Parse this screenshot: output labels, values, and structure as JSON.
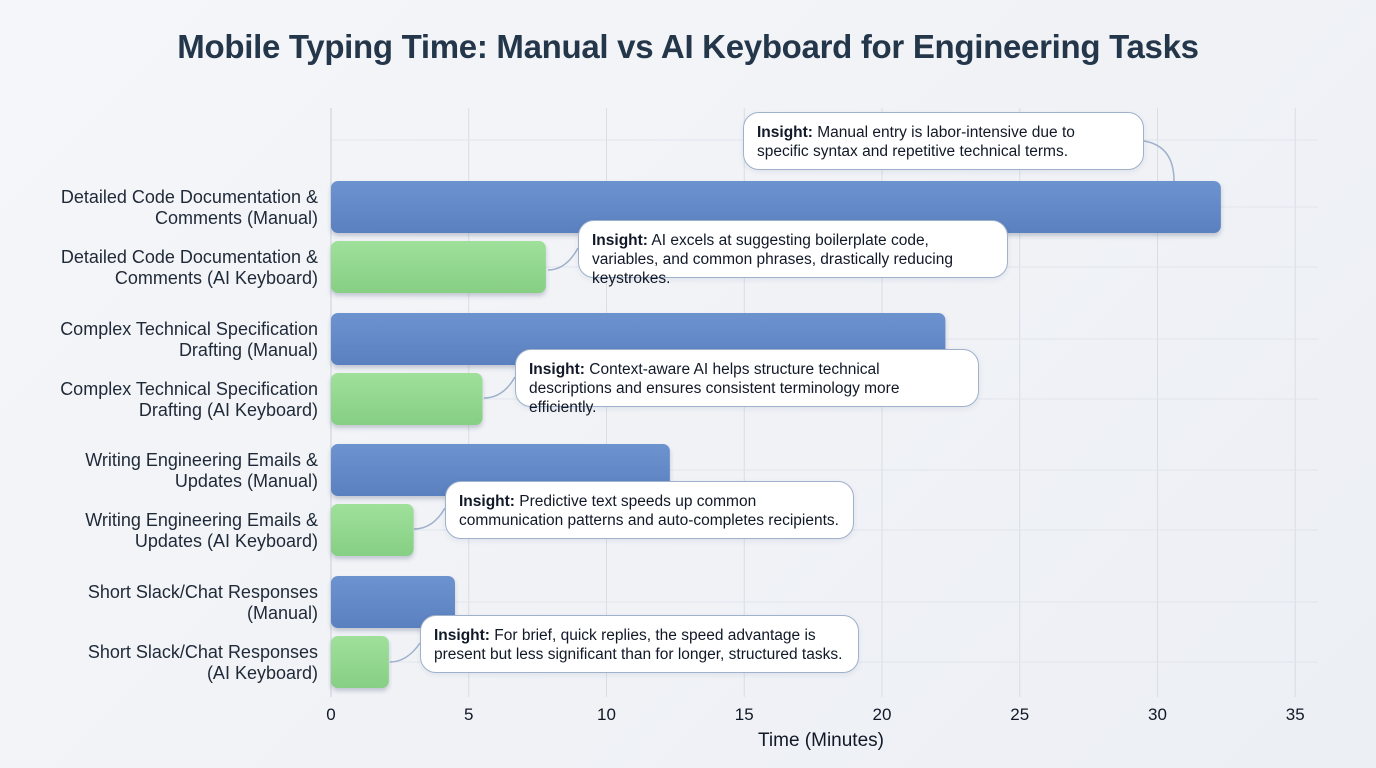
{
  "chart_data": {
    "type": "bar",
    "orientation": "horizontal",
    "title": "Mobile Typing Time: Manual vs AI Keyboard for Engineering Tasks",
    "xlabel": "Time (Minutes)",
    "ylabel": "",
    "xlim": [
      0,
      36
    ],
    "xticks": [
      0,
      5,
      10,
      15,
      20,
      25,
      30,
      35
    ],
    "grid": true,
    "categories": [
      "Detailed Code Documentation & Comments (Manual)",
      "Detailed Code Documentation & Comments (AI Keyboard)",
      "Complex Technical Specification Drafting (Manual)",
      "Complex Technical Specification Drafting (AI Keyboard)",
      "Writing Engineering Emails & Updates (Manual)",
      "Writing Engineering Emails & Updates (AI Keyboard)",
      "Short Slack/Chat Responses (Manual)",
      "Short Slack/Chat Responses (AI Keyboard)"
    ],
    "category_lines": [
      [
        "Detailed Code Documentation &",
        "Comments (Manual)"
      ],
      [
        "Detailed Code Documentation &",
        "Comments (AI Keyboard)"
      ],
      [
        "Complex Technical Specification",
        "Drafting (Manual)"
      ],
      [
        "Complex Technical Specification",
        "Drafting (AI Keyboard)"
      ],
      [
        "Writing Engineering Emails &",
        "Updates (Manual)"
      ],
      [
        "Writing Engineering Emails &",
        "Updates (AI Keyboard)"
      ],
      [
        "Short Slack/Chat Responses",
        "(Manual)"
      ],
      [
        "Short Slack/Chat Responses",
        "(AI Keyboard)"
      ]
    ],
    "values": [
      32.3,
      7.8,
      22.3,
      5.5,
      12.3,
      3.0,
      4.5,
      2.1
    ],
    "bar_kind": [
      "manual",
      "ai",
      "manual",
      "ai",
      "manual",
      "ai",
      "manual",
      "ai"
    ],
    "colors": {
      "manual": "#6088c6",
      "ai": "#92d88f"
    },
    "annotations": [
      {
        "label": "Insight:",
        "text": "Manual entry is labor-intensive due to specific syntax and repetitive technical terms.",
        "category": 0
      },
      {
        "label": "Insight:",
        "text": "AI excels at suggesting boilerplate code, variables, and common phrases, drastically reducing keystrokes.",
        "category": 1
      },
      {
        "label": "Insight:",
        "text": "Context-aware AI helps structure technical descriptions and ensures consistent terminology more efficiently.",
        "category": 3
      },
      {
        "label": "Insight:",
        "text": "Predictive text speeds up common communication patterns and auto-completes recipients.",
        "category": 5
      },
      {
        "label": "Insight:",
        "text": "For brief, quick replies, the speed advantage is present but less significant than for longer, structured tasks.",
        "category": 7
      }
    ]
  }
}
